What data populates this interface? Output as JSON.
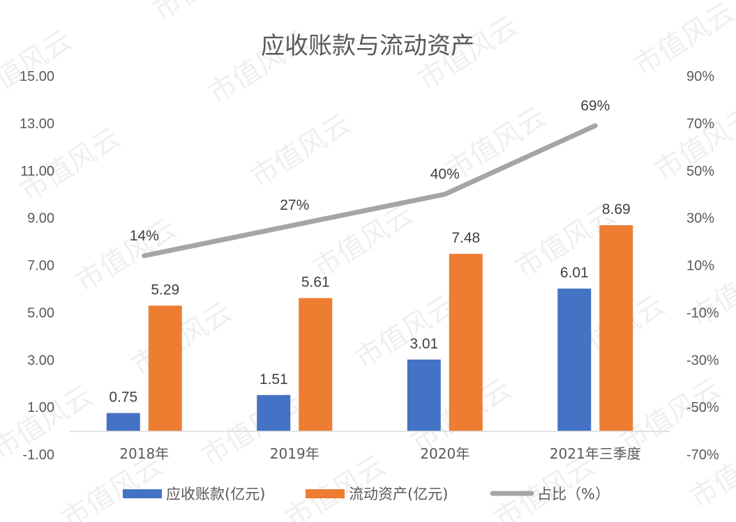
{
  "chart_data": {
    "type": "bar",
    "title": "应收账款与流动资产",
    "categories": [
      "2018年",
      "2019年",
      "2020年",
      "2021年三季度"
    ],
    "series": [
      {
        "name": "应收账款(亿元)",
        "type": "bar",
        "axis": "left",
        "color": "#4472C4",
        "values": [
          0.75,
          1.51,
          3.01,
          6.01
        ]
      },
      {
        "name": "流动资产(亿元)",
        "type": "bar",
        "axis": "left",
        "color": "#ED7D31",
        "values": [
          5.29,
          5.61,
          7.48,
          8.69
        ]
      },
      {
        "name": "占比（%）",
        "type": "line",
        "axis": "right",
        "color": "#A5A5A5",
        "values": [
          14,
          27,
          40,
          69
        ]
      }
    ],
    "data_labels": {
      "bars0": [
        "0.75",
        "1.51",
        "3.01",
        "6.01"
      ],
      "bars1": [
        "5.29",
        "5.61",
        "7.48",
        "8.69"
      ],
      "line": [
        "14%",
        "27%",
        "40%",
        "69%"
      ]
    },
    "left_axis": {
      "range": [
        -1,
        15
      ],
      "ticks": [
        "15.00",
        "13.00",
        "11.00",
        "9.00",
        "7.00",
        "5.00",
        "3.00",
        "1.00",
        "-1.00"
      ]
    },
    "right_axis": {
      "range": [
        -70,
        90
      ],
      "ticks": [
        "90%",
        "70%",
        "50%",
        "30%",
        "10%",
        "-10%",
        "-30%",
        "-50%",
        "-70%"
      ]
    },
    "grid": false,
    "legend_position": "bottom"
  },
  "watermark": "市值风云"
}
